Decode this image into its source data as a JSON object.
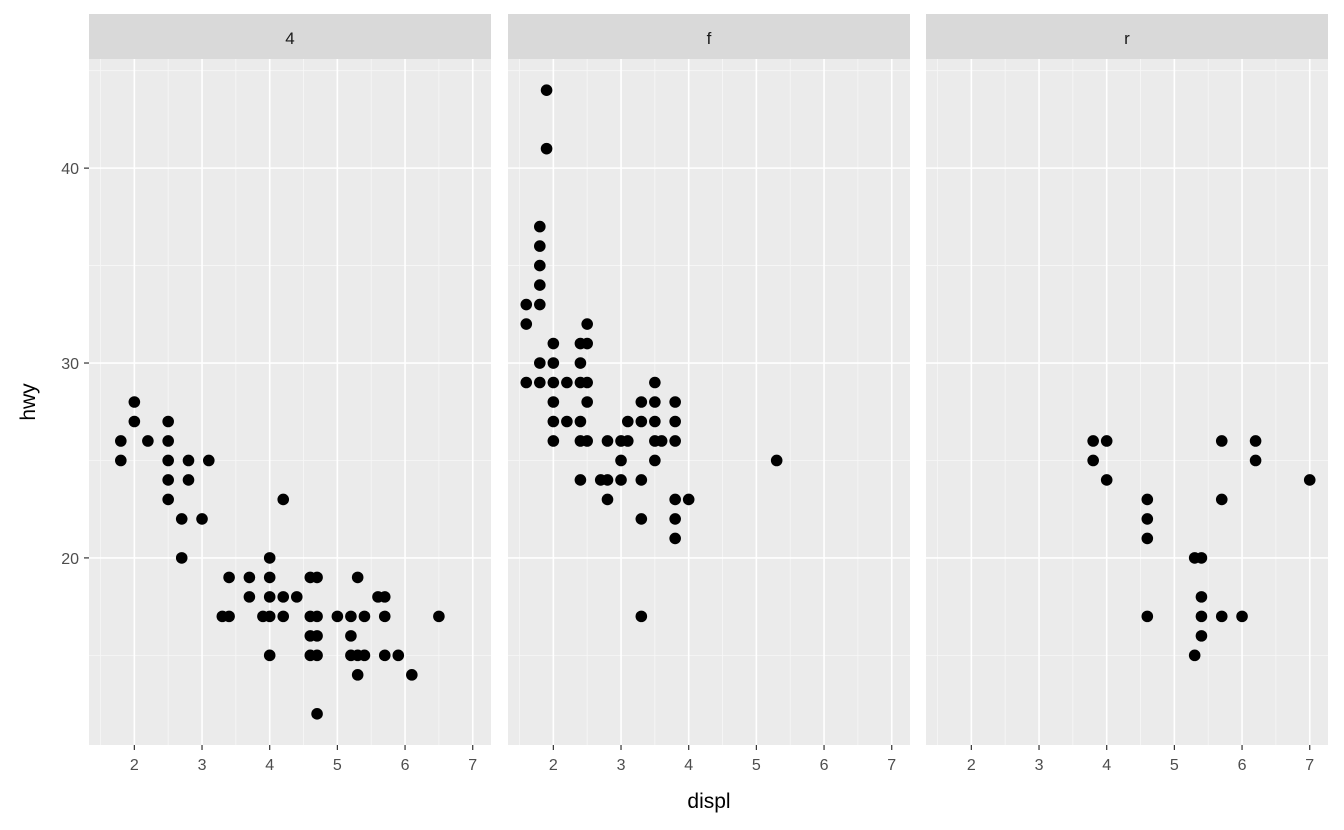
{
  "chart_data": {
    "type": "scatter",
    "xlabel": "displ",
    "ylabel": "hwy",
    "xlim": [
      1.33,
      7.27
    ],
    "ylim": [
      10.4,
      45.6
    ],
    "x_ticks": [
      2,
      3,
      4,
      5,
      6,
      7
    ],
    "y_ticks": [
      20,
      30,
      40
    ],
    "grid": true,
    "point_color": "#000000",
    "panel_background": "#ebebeb",
    "strip_background": "#d9d9d9",
    "facets": [
      {
        "label": "4",
        "points": [
          [
            1.8,
            26
          ],
          [
            1.8,
            25
          ],
          [
            2.0,
            28
          ],
          [
            2.0,
            27
          ],
          [
            2.2,
            26
          ],
          [
            2.5,
            27
          ],
          [
            2.5,
            26
          ],
          [
            2.5,
            25
          ],
          [
            2.5,
            24
          ],
          [
            2.5,
            23
          ],
          [
            2.7,
            22
          ],
          [
            2.7,
            20
          ],
          [
            2.8,
            25
          ],
          [
            2.8,
            24
          ],
          [
            3.0,
            22
          ],
          [
            3.1,
            25
          ],
          [
            3.3,
            17
          ],
          [
            3.4,
            19
          ],
          [
            3.4,
            17
          ],
          [
            3.7,
            19
          ],
          [
            3.7,
            18
          ],
          [
            3.9,
            17
          ],
          [
            4.0,
            20
          ],
          [
            4.0,
            19
          ],
          [
            4.0,
            18
          ],
          [
            4.0,
            17
          ],
          [
            4.0,
            15
          ],
          [
            4.2,
            23
          ],
          [
            4.2,
            18
          ],
          [
            4.2,
            17
          ],
          [
            4.4,
            18
          ],
          [
            4.6,
            19
          ],
          [
            4.6,
            17
          ],
          [
            4.6,
            16
          ],
          [
            4.6,
            15
          ],
          [
            4.7,
            19
          ],
          [
            4.7,
            17
          ],
          [
            4.7,
            16
          ],
          [
            4.7,
            15
          ],
          [
            4.7,
            12
          ],
          [
            5.0,
            17
          ],
          [
            5.2,
            17
          ],
          [
            5.2,
            16
          ],
          [
            5.2,
            15
          ],
          [
            5.3,
            19
          ],
          [
            5.3,
            15
          ],
          [
            5.3,
            14
          ],
          [
            5.4,
            17
          ],
          [
            5.4,
            15
          ],
          [
            5.6,
            18
          ],
          [
            5.7,
            18
          ],
          [
            5.7,
            17
          ],
          [
            5.7,
            15
          ],
          [
            5.9,
            15
          ],
          [
            6.1,
            14
          ],
          [
            6.5,
            17
          ]
        ]
      },
      {
        "label": "f",
        "points": [
          [
            1.6,
            33
          ],
          [
            1.6,
            32
          ],
          [
            1.6,
            29
          ],
          [
            1.8,
            37
          ],
          [
            1.8,
            36
          ],
          [
            1.8,
            35
          ],
          [
            1.8,
            34
          ],
          [
            1.8,
            33
          ],
          [
            1.8,
            30
          ],
          [
            1.8,
            29
          ],
          [
            1.9,
            44
          ],
          [
            1.9,
            41
          ],
          [
            2.0,
            31
          ],
          [
            2.0,
            30
          ],
          [
            2.0,
            29
          ],
          [
            2.0,
            28
          ],
          [
            2.0,
            27
          ],
          [
            2.0,
            26
          ],
          [
            2.2,
            29
          ],
          [
            2.2,
            27
          ],
          [
            2.4,
            31
          ],
          [
            2.4,
            30
          ],
          [
            2.4,
            29
          ],
          [
            2.4,
            27
          ],
          [
            2.4,
            26
          ],
          [
            2.4,
            24
          ],
          [
            2.5,
            32
          ],
          [
            2.5,
            31
          ],
          [
            2.5,
            29
          ],
          [
            2.5,
            28
          ],
          [
            2.5,
            26
          ],
          [
            2.7,
            24
          ],
          [
            2.8,
            26
          ],
          [
            2.8,
            24
          ],
          [
            2.8,
            23
          ],
          [
            3.0,
            26
          ],
          [
            3.0,
            25
          ],
          [
            3.0,
            24
          ],
          [
            3.1,
            27
          ],
          [
            3.1,
            26
          ],
          [
            3.3,
            28
          ],
          [
            3.3,
            27
          ],
          [
            3.3,
            24
          ],
          [
            3.3,
            22
          ],
          [
            3.3,
            17
          ],
          [
            3.5,
            29
          ],
          [
            3.5,
            28
          ],
          [
            3.5,
            27
          ],
          [
            3.5,
            26
          ],
          [
            3.5,
            25
          ],
          [
            3.6,
            26
          ],
          [
            3.8,
            28
          ],
          [
            3.8,
            27
          ],
          [
            3.8,
            26
          ],
          [
            3.8,
            23
          ],
          [
            3.8,
            22
          ],
          [
            3.8,
            21
          ],
          [
            4.0,
            23
          ],
          [
            5.3,
            25
          ]
        ]
      },
      {
        "label": "r",
        "points": [
          [
            3.8,
            26
          ],
          [
            3.8,
            25
          ],
          [
            4.0,
            26
          ],
          [
            4.0,
            24
          ],
          [
            4.6,
            23
          ],
          [
            4.6,
            22
          ],
          [
            4.6,
            21
          ],
          [
            4.6,
            17
          ],
          [
            5.3,
            20
          ],
          [
            5.3,
            15
          ],
          [
            5.4,
            20
          ],
          [
            5.4,
            18
          ],
          [
            5.4,
            17
          ],
          [
            5.4,
            16
          ],
          [
            5.7,
            26
          ],
          [
            5.7,
            23
          ],
          [
            5.7,
            17
          ],
          [
            6.0,
            17
          ],
          [
            6.2,
            26
          ],
          [
            6.2,
            25
          ],
          [
            7.0,
            24
          ]
        ]
      }
    ]
  }
}
